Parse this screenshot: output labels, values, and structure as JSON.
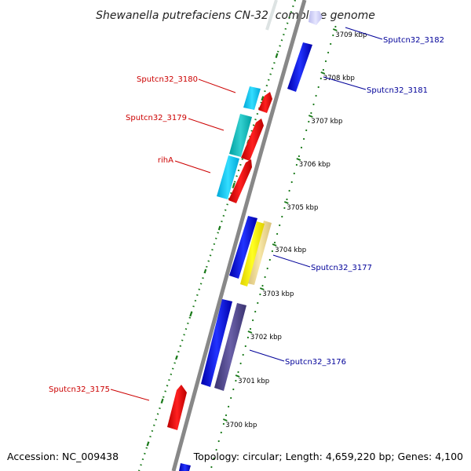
{
  "title": "Shewanella putrefaciens CN-32, complete genome",
  "accession": "Accession: NC_009438",
  "topology": "Topology: circular; Length: 4,659,220 bp; Genes: 4,100",
  "colors": {
    "backbone": "#888888",
    "ticks": "#1a7a1a",
    "forward_label": "#cc0000",
    "reverse_label": "#000099"
  },
  "ticks": [
    {
      "label": "3709 kbp"
    },
    {
      "label": "3708 kbp"
    },
    {
      "label": "3707 kbp"
    },
    {
      "label": "3706 kbp"
    },
    {
      "label": "3705 kbp"
    },
    {
      "label": "3704 kbp"
    },
    {
      "label": "3703 kbp"
    },
    {
      "label": "3702 kbp"
    },
    {
      "label": "3701 kbp"
    },
    {
      "label": "3700 kbp"
    }
  ],
  "gene_labels": [
    {
      "text": "Sputcn32_3182",
      "color": "#000099"
    },
    {
      "text": "Sputcn32_3181",
      "color": "#000099"
    },
    {
      "text": "Sputcn32_3180",
      "color": "#cc0000"
    },
    {
      "text": "Sputcn32_3179",
      "color": "#cc0000"
    },
    {
      "text": "rihA",
      "color": "#cc0000"
    },
    {
      "text": "Sputcn32_3177",
      "color": "#000099"
    },
    {
      "text": "Sputcn32_3176",
      "color": "#000099"
    },
    {
      "text": "Sputcn32_3175",
      "color": "#cc0000"
    }
  ]
}
